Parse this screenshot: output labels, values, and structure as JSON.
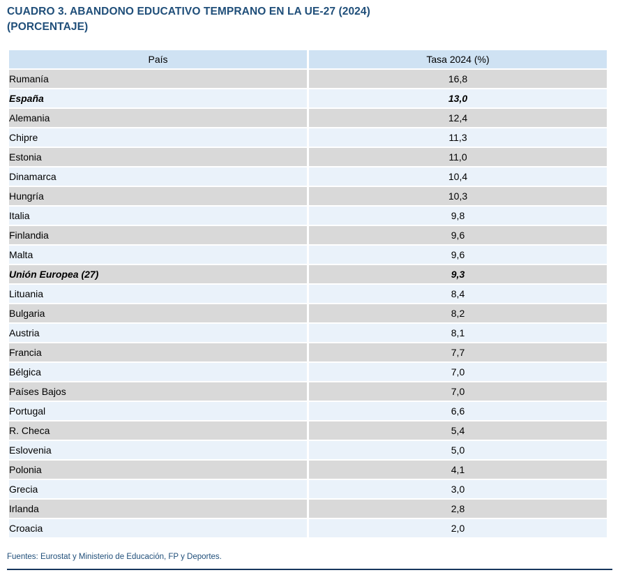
{
  "title": {
    "line1": "CUADRO 3. ABANDONO EDUCATIVO TEMPRANO EN LA UE-27 (2024)",
    "line2": "(PORCENTAJE)"
  },
  "table": {
    "columns": [
      "País",
      "Tasa 2024 (%)"
    ],
    "rows": [
      {
        "country": "Rumanía",
        "value": "16,8",
        "emphasis": false
      },
      {
        "country": "España",
        "value": "13,0",
        "emphasis": true
      },
      {
        "country": "Alemania",
        "value": "12,4",
        "emphasis": false
      },
      {
        "country": "Chipre",
        "value": "11,3",
        "emphasis": false
      },
      {
        "country": "Estonia",
        "value": "11,0",
        "emphasis": false
      },
      {
        "country": "Dinamarca",
        "value": "10,4",
        "emphasis": false
      },
      {
        "country": "Hungría",
        "value": "10,3",
        "emphasis": false
      },
      {
        "country": "Italia",
        "value": "9,8",
        "emphasis": false
      },
      {
        "country": "Finlandia",
        "value": "9,6",
        "emphasis": false
      },
      {
        "country": "Malta",
        "value": "9,6",
        "emphasis": false
      },
      {
        "country": "Unión Europea (27)",
        "value": "9,3",
        "emphasis": true
      },
      {
        "country": "Lituania",
        "value": "8,4",
        "emphasis": false
      },
      {
        "country": "Bulgaria",
        "value": "8,2",
        "emphasis": false
      },
      {
        "country": "Austria",
        "value": "8,1",
        "emphasis": false
      },
      {
        "country": "Francia",
        "value": "7,7",
        "emphasis": false
      },
      {
        "country": "Bélgica",
        "value": "7,0",
        "emphasis": false
      },
      {
        "country": "Países Bajos",
        "value": "7,0",
        "emphasis": false
      },
      {
        "country": "Portugal",
        "value": "6,6",
        "emphasis": false
      },
      {
        "country": "R. Checa",
        "value": "5,4",
        "emphasis": false
      },
      {
        "country": "Eslovenia",
        "value": "5,0",
        "emphasis": false
      },
      {
        "country": "Polonia",
        "value": "4,1",
        "emphasis": false
      },
      {
        "country": "Grecia",
        "value": "3,0",
        "emphasis": false
      },
      {
        "country": "Irlanda",
        "value": "2,8",
        "emphasis": false
      },
      {
        "country": "Croacia",
        "value": "2,0",
        "emphasis": false
      }
    ]
  },
  "footer": {
    "sources": "Fuentes: Eurostat y Ministerio de Educación, FP y Deportes."
  },
  "colors": {
    "title_text": "#1f4e79",
    "header_bg": "#cfe2f3",
    "row_gray": "#d9d9d9",
    "row_blue": "#eaf2fa",
    "footer_text": "#1f4e79",
    "bottom_rule": "#17365d",
    "cell_text": "#000000"
  }
}
